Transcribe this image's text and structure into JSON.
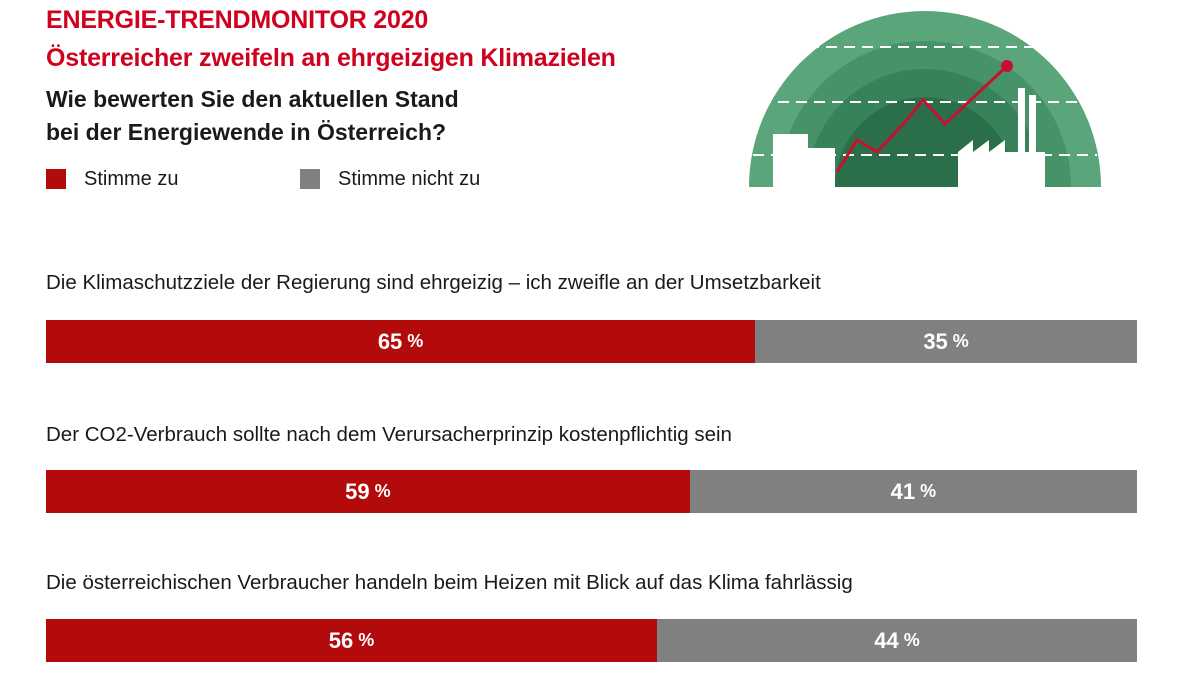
{
  "header": {
    "title": "ENERGIE-TRENDMONITOR 2020",
    "subtitle": "Österreicher zweifeln an ehrgeizigen Klimazielen",
    "question_line1": "Wie bewerten Sie den aktuellen Stand",
    "question_line2": "bei der Energiewende in Österreich?"
  },
  "colors": {
    "accent": "#d0001f",
    "agree": "#b30b0b",
    "disagree": "#808080",
    "illustration_green": "#5aa57a"
  },
  "icons": {
    "illustration": "energy-transition-chart-illustration"
  },
  "chart_data": {
    "type": "bar",
    "stacked": true,
    "orientation": "horizontal",
    "legend": [
      "Stimme zu",
      "Stimme nicht zu"
    ],
    "legend_placement": "top-left",
    "unit": "%",
    "xlim": [
      0,
      100
    ],
    "categories": [
      "Die Klimaschutzziele der Regierung sind ehrgeizig – ich zweifle an der Umsetzbarkeit",
      "Der CO2-Verbrauch sollte nach dem Verursacherprinzip kostenpflichtig sein",
      "Die österreichischen Verbraucher handeln beim Heizen mit Blick auf das Klima fahrlässig"
    ],
    "series": [
      {
        "name": "Stimme zu",
        "values": [
          65,
          59,
          56
        ]
      },
      {
        "name": "Stimme nicht zu",
        "values": [
          35,
          41,
          44
        ]
      }
    ]
  }
}
